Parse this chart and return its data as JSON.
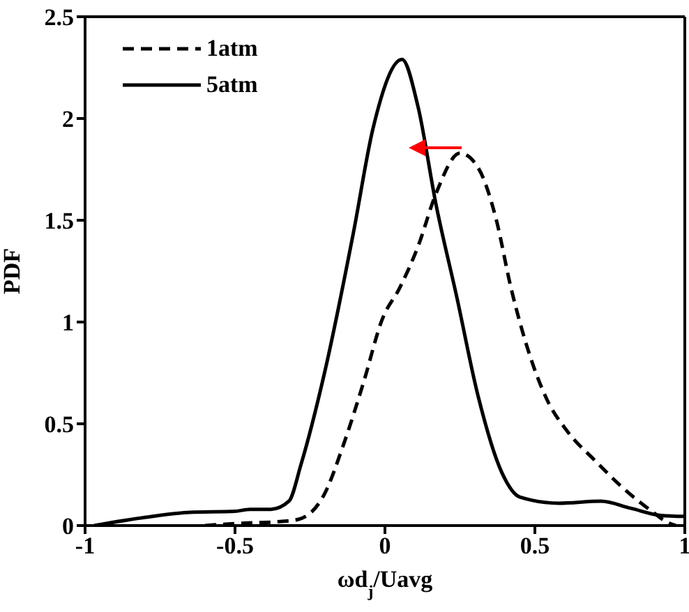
{
  "chart_data": {
    "type": "line",
    "xlabel": "ωd$_{j}$/Uavg",
    "ylabel": "PDF",
    "xlim": [
      -1,
      1
    ],
    "ylim": [
      0,
      2.5
    ],
    "xticks": [
      -1,
      -0.5,
      0,
      0.5,
      1
    ],
    "yticks": [
      0,
      0.5,
      1,
      1.5,
      2,
      2.5
    ],
    "legend": "top left",
    "marker": "none",
    "series": [
      {
        "name": "1atm",
        "color": "#000000",
        "line_style": "dashed",
        "x": [
          -0.6,
          -0.5,
          -0.35,
          -0.29,
          -0.2,
          -0.14,
          -0.07,
          -0.01,
          0.05,
          0.11,
          0.17,
          0.25,
          0.31,
          0.37,
          0.42,
          0.48,
          0.54,
          0.61,
          0.7,
          0.79,
          0.89,
          0.95,
          0.97
        ],
        "values": [
          0,
          0.01,
          0.02,
          0.03,
          0.16,
          0.39,
          0.71,
          1.01,
          1.17,
          1.37,
          1.63,
          1.83,
          1.76,
          1.51,
          1.17,
          0.85,
          0.62,
          0.46,
          0.32,
          0.19,
          0.07,
          0.01,
          0
        ]
      },
      {
        "name": "5atm",
        "color": "#000000",
        "line_style": "solid",
        "x": [
          -0.97,
          -0.8,
          -0.65,
          -0.5,
          -0.45,
          -0.38,
          -0.32,
          -0.28,
          -0.2,
          -0.105,
          -0.04,
          0.057,
          0.11,
          0.17,
          0.24,
          0.31,
          0.39,
          0.45,
          0.58,
          0.72,
          0.82,
          0.92,
          1
        ],
        "values": [
          0,
          0.04,
          0.065,
          0.07,
          0.08,
          0.08,
          0.12,
          0.3,
          0.76,
          1.44,
          1.95,
          2.29,
          2.06,
          1.58,
          1.12,
          0.64,
          0.26,
          0.14,
          0.11,
          0.12,
          0.085,
          0.05,
          0.045
        ]
      }
    ]
  }
}
